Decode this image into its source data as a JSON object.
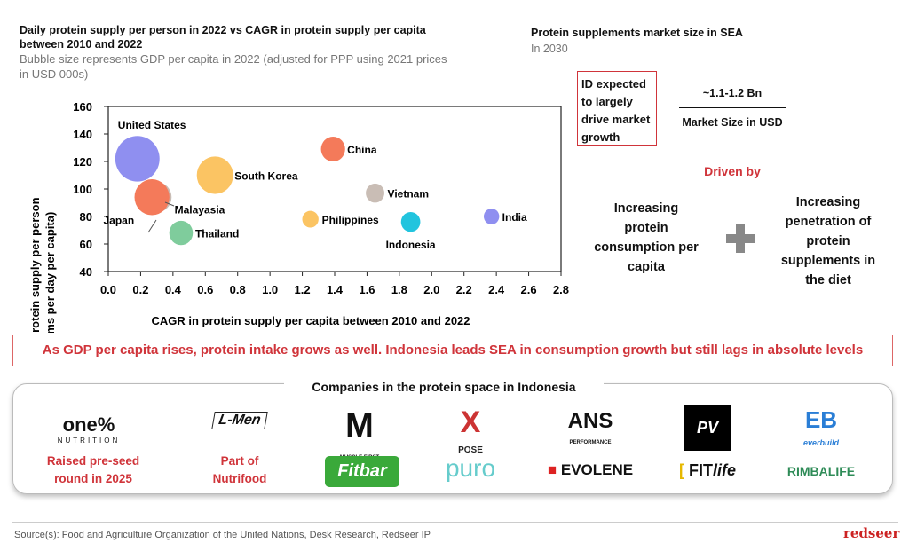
{
  "chart_data": {
    "type": "bubble",
    "title": "Daily protein supply per person in 2022 vs CAGR in protein supply per capita between 2010 and 2022",
    "subtitle": "Bubble size represents GDP per capita in 2022 (adjusted for PPP using 2021 prices in USD 000s)",
    "xlabel": "CAGR in protein supply per capita between 2010 and 2022",
    "ylabel": "Daily protein supply per person (grams per day per capita)",
    "ylabel_line1": "Daily protein supply per person",
    "ylabel_line2": "(grams per day per capita)",
    "xlim": [
      0,
      2.8
    ],
    "ylim": [
      40,
      160
    ],
    "xticks": [
      "0.0",
      "0.2",
      "0.4",
      "0.6",
      "0.8",
      "1.0",
      "1.2",
      "1.4",
      "1.6",
      "1.8",
      "2.0",
      "2.2",
      "2.4",
      "2.6",
      "2.8"
    ],
    "yticks": [
      "40",
      "60",
      "80",
      "100",
      "120",
      "140",
      "160"
    ],
    "points": [
      {
        "name": "United States",
        "x": 0.18,
        "y": 122,
        "size": 74,
        "color": "#8f8ff0"
      },
      {
        "name": "Malayasia",
        "x": 0.3,
        "y": 94,
        "size": 33,
        "color": "#c9bdb5"
      },
      {
        "name": "Japan",
        "x": 0.27,
        "y": 94,
        "size": 46,
        "color": "#f47a5a"
      },
      {
        "name": "South Korea",
        "x": 0.66,
        "y": 110,
        "size": 50,
        "color": "#fbc463"
      },
      {
        "name": "Thailand",
        "x": 0.45,
        "y": 68,
        "size": 21,
        "color": "#7fcc9c"
      },
      {
        "name": "China",
        "x": 1.39,
        "y": 129,
        "size": 22,
        "color": "#f47a5a"
      },
      {
        "name": "Vietnam",
        "x": 1.65,
        "y": 97,
        "size": 13,
        "color": "#c9bdb5"
      },
      {
        "name": "Philippines",
        "x": 1.25,
        "y": 78,
        "size": 10,
        "color": "#fbc463"
      },
      {
        "name": "Indonesia",
        "x": 1.87,
        "y": 76,
        "size": 14,
        "color": "#22c4de"
      },
      {
        "name": "India",
        "x": 2.37,
        "y": 80,
        "size": 9,
        "color": "#8f8ff0"
      }
    ]
  },
  "market": {
    "title": "Protein supplements market size in SEA",
    "year": "In 2030",
    "id_note": "ID expected to largely drive market growth",
    "size": "~1.1-1.2 Bn",
    "size_label": "Market Size in USD",
    "driven_by": "Driven by",
    "driver1": "Increasing protein consumption per capita",
    "driver2": "Increasing penetration of protein supplements in the diet"
  },
  "banner": "As GDP per capita rises, protein intake grows as well. Indonesia leads SEA in consumption growth but still lags in absolute levels",
  "companies": {
    "title": "Companies in the protein space in Indonesia",
    "one": {
      "name": "one%",
      "sub": "NUTRITION",
      "note1": "Raised pre-seed",
      "note2": "round in 2025"
    },
    "lmen": {
      "name": "L-Men",
      "note1": "Part of",
      "note2": "Nutrifood"
    },
    "logos": [
      "M",
      "MUSCLE FIRST",
      "X",
      "POSE",
      "ANS",
      "PERFORMANCE",
      "PV",
      "EB",
      "everbuild",
      "Fitbar",
      "puro",
      "EVOLENE",
      "FIT",
      "life",
      "RIMBALIFE"
    ]
  },
  "footer": {
    "source": "Source(s): Food and Agriculture Organization of the United Nations, Desk Research, Redseer IP",
    "brand": "redseer"
  }
}
